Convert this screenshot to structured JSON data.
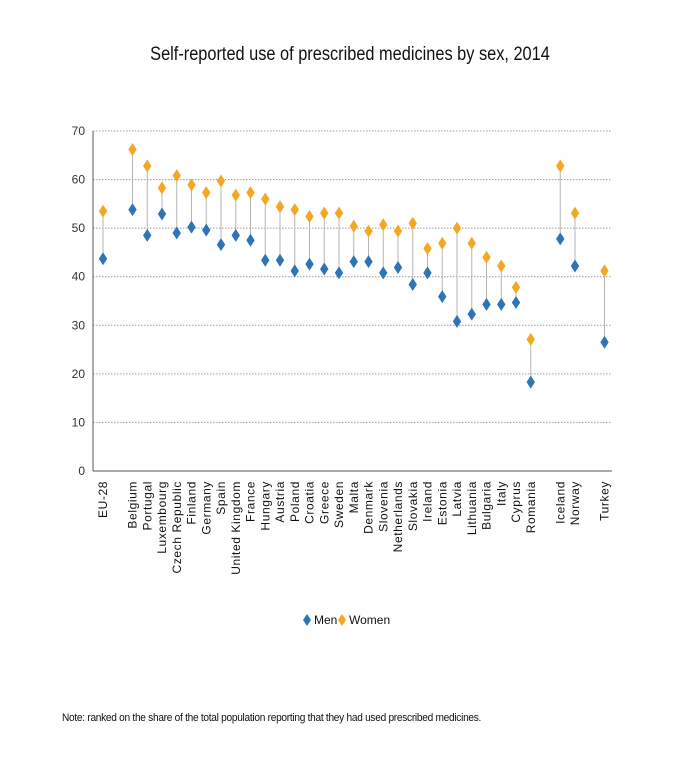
{
  "chart_data": {
    "type": "scatter",
    "title": "Self-reported use of prescribed medicines by sex, 2014",
    "xlabel": "",
    "ylabel": "",
    "ylim": [
      0,
      70
    ],
    "yticks": [
      0,
      10,
      20,
      30,
      40,
      50,
      60,
      70
    ],
    "grid": "horizontal dotted",
    "legend_position": "bottom",
    "categories": [
      "EU-28",
      "",
      "Belgium",
      "Portugal",
      "Luxembourg",
      "Czech Republic",
      "Finland",
      "Germany",
      "Spain",
      "United Kingdom",
      "France",
      "Hungary",
      "Austria",
      "Poland",
      "Croatia",
      "Greece",
      "Sweden",
      "Malta",
      "Denmark",
      "Slovenia",
      "Netherlands",
      "Slovakia",
      "Ireland",
      "Estonia",
      "Latvia",
      "Lithuania",
      "Bulgaria",
      "Italy",
      "Cyprus",
      "Romania",
      "",
      "Iceland",
      "Norway",
      "",
      "Turkey"
    ],
    "series": [
      {
        "name": "Men",
        "color": "#2e75b6",
        "values": [
          43.7,
          null,
          53.8,
          48.5,
          52.9,
          49.0,
          50.2,
          49.6,
          46.6,
          48.5,
          47.5,
          43.4,
          43.4,
          41.2,
          42.6,
          41.6,
          40.8,
          43.1,
          43.1,
          40.8,
          41.9,
          38.4,
          40.8,
          35.9,
          30.8,
          32.3,
          34.3,
          34.3,
          34.7,
          18.3,
          null,
          47.8,
          42.2,
          null,
          26.5
        ]
      },
      {
        "name": "Women",
        "color": "#f5a623",
        "values": [
          53.5,
          null,
          66.2,
          62.8,
          58.3,
          60.8,
          58.9,
          57.3,
          59.7,
          56.8,
          57.3,
          56.0,
          54.4,
          53.8,
          52.4,
          53.1,
          53.1,
          50.4,
          49.4,
          50.7,
          49.4,
          51.0,
          45.8,
          46.9,
          50.0,
          46.9,
          44.0,
          42.2,
          37.8,
          27.1,
          null,
          62.8,
          53.1,
          null,
          41.2
        ]
      }
    ]
  },
  "note": "Note: ranked on the share of the total population reporting that they had used prescribed medicines."
}
